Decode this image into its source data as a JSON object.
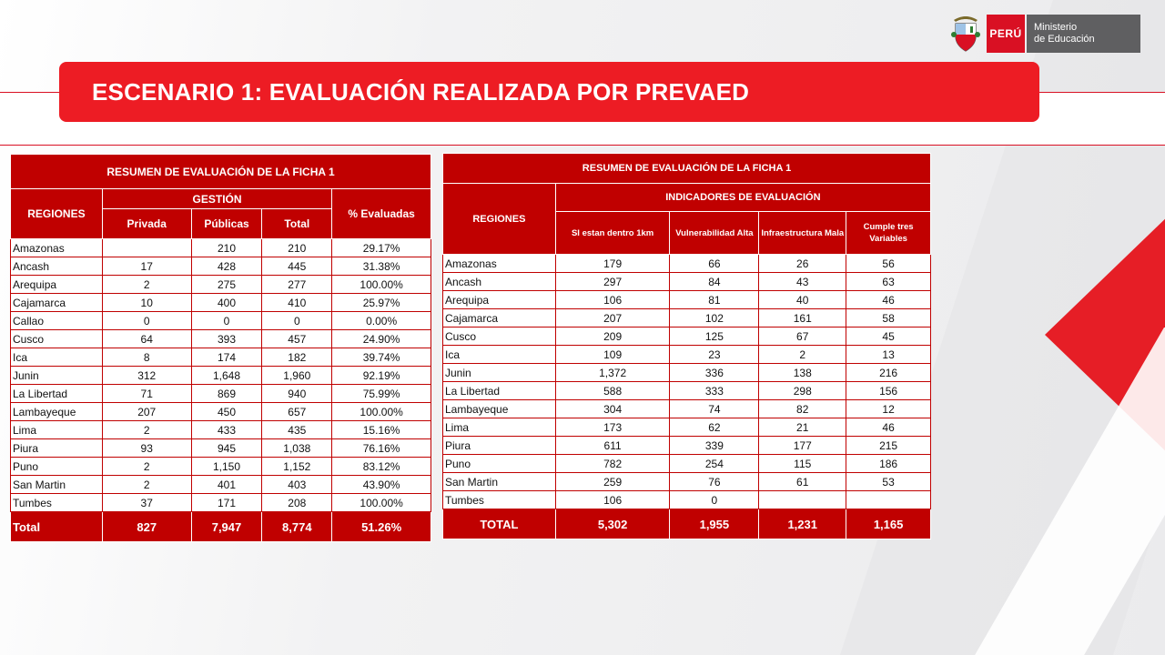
{
  "header": {
    "logo_country": "PERÚ",
    "logo_ministry_line1": "Ministerio",
    "logo_ministry_line2": "de Educación",
    "title": "ESCENARIO 1: EVALUACIÓN REALIZADA POR PREVAED"
  },
  "table1": {
    "title": "RESUMEN DE EVALUACIÓN DE LA FICHA 1",
    "col_regiones": "REGIONES",
    "col_gestion": "GESTIÓN",
    "col_privada": "Privada",
    "col_publicas": "Públicas",
    "col_total": "Total",
    "col_evaluadas": "% Evaluadas",
    "rows": [
      {
        "region": "Amazonas",
        "privada": "",
        "publicas": "210",
        "total": "210",
        "pct": "29.17%"
      },
      {
        "region": "Ancash",
        "privada": "17",
        "publicas": "428",
        "total": "445",
        "pct": "31.38%"
      },
      {
        "region": "Arequipa",
        "privada": "2",
        "publicas": "275",
        "total": "277",
        "pct": "100.00%"
      },
      {
        "region": "Cajamarca",
        "privada": "10",
        "publicas": "400",
        "total": "410",
        "pct": "25.97%"
      },
      {
        "region": "Callao",
        "privada": "0",
        "publicas": "0",
        "total": "0",
        "pct": "0.00%"
      },
      {
        "region": "Cusco",
        "privada": "64",
        "publicas": "393",
        "total": "457",
        "pct": "24.90%"
      },
      {
        "region": "Ica",
        "privada": "8",
        "publicas": "174",
        "total": "182",
        "pct": "39.74%"
      },
      {
        "region": "Junin",
        "privada": "312",
        "publicas": "1,648",
        "total": "1,960",
        "pct": "92.19%"
      },
      {
        "region": "La Libertad",
        "privada": "71",
        "publicas": "869",
        "total": "940",
        "pct": "75.99%"
      },
      {
        "region": "Lambayeque",
        "privada": "207",
        "publicas": "450",
        "total": "657",
        "pct": "100.00%"
      },
      {
        "region": "Lima",
        "privada": "2",
        "publicas": "433",
        "total": "435",
        "pct": "15.16%"
      },
      {
        "region": "Piura",
        "privada": "93",
        "publicas": "945",
        "total": "1,038",
        "pct": "76.16%"
      },
      {
        "region": "Puno",
        "privada": "2",
        "publicas": "1,150",
        "total": "1,152",
        "pct": "83.12%"
      },
      {
        "region": "San Martin",
        "privada": "2",
        "publicas": "401",
        "total": "403",
        "pct": "43.90%"
      },
      {
        "region": "Tumbes",
        "privada": "37",
        "publicas": "171",
        "total": "208",
        "pct": "100.00%"
      }
    ],
    "total": {
      "label": "Total",
      "privada": "827",
      "publicas": "7,947",
      "total": "8,774",
      "pct": "51.26%"
    }
  },
  "table2": {
    "title": "RESUMEN DE EVALUACIÓN DE LA FICHA 1",
    "col_regiones": "REGIONES",
    "col_indicadores": "INDICADORES DE EVALUACIÓN",
    "col_1km": "SI estan dentro 1km",
    "col_vuln": "Vulnerabilidad Alta",
    "col_infra": "Infraestructura Mala",
    "col_cumple": "Cumple tres Variables",
    "rows": [
      {
        "region": "Amazonas",
        "km": "179",
        "vuln": "66",
        "infra": "26",
        "cumple": "56"
      },
      {
        "region": "Ancash",
        "km": "297",
        "vuln": "84",
        "infra": "43",
        "cumple": "63"
      },
      {
        "region": "Arequipa",
        "km": "106",
        "vuln": "81",
        "infra": "40",
        "cumple": "46"
      },
      {
        "region": "Cajamarca",
        "km": "207",
        "vuln": "102",
        "infra": "161",
        "cumple": "58"
      },
      {
        "region": "Cusco",
        "km": "209",
        "vuln": "125",
        "infra": "67",
        "cumple": "45"
      },
      {
        "region": "Ica",
        "km": "109",
        "vuln": "23",
        "infra": "2",
        "cumple": "13"
      },
      {
        "region": "Junin",
        "km": "1,372",
        "vuln": "336",
        "infra": "138",
        "cumple": "216"
      },
      {
        "region": "La Libertad",
        "km": "588",
        "vuln": "333",
        "infra": "298",
        "cumple": "156"
      },
      {
        "region": "Lambayeque",
        "km": "304",
        "vuln": "74",
        "infra": "82",
        "cumple": "12"
      },
      {
        "region": "Lima",
        "km": "173",
        "vuln": "62",
        "infra": "21",
        "cumple": "46"
      },
      {
        "region": "Piura",
        "km": "611",
        "vuln": "339",
        "infra": "177",
        "cumple": "215"
      },
      {
        "region": "Puno",
        "km": "782",
        "vuln": "254",
        "infra": "115",
        "cumple": "186"
      },
      {
        "region": "San Martin",
        "km": "259",
        "vuln": "76",
        "infra": "61",
        "cumple": "53"
      },
      {
        "region": "Tumbes",
        "km": "106",
        "vuln": "0",
        "infra": "",
        "cumple": ""
      }
    ],
    "total": {
      "label": "TOTAL",
      "km": "5,302",
      "vuln": "1,955",
      "infra": "1,231",
      "cumple": "1,165"
    }
  },
  "colors": {
    "accent_red": "#ed1c24",
    "table_red": "#c00000",
    "logo_gray": "#5f5f61"
  }
}
